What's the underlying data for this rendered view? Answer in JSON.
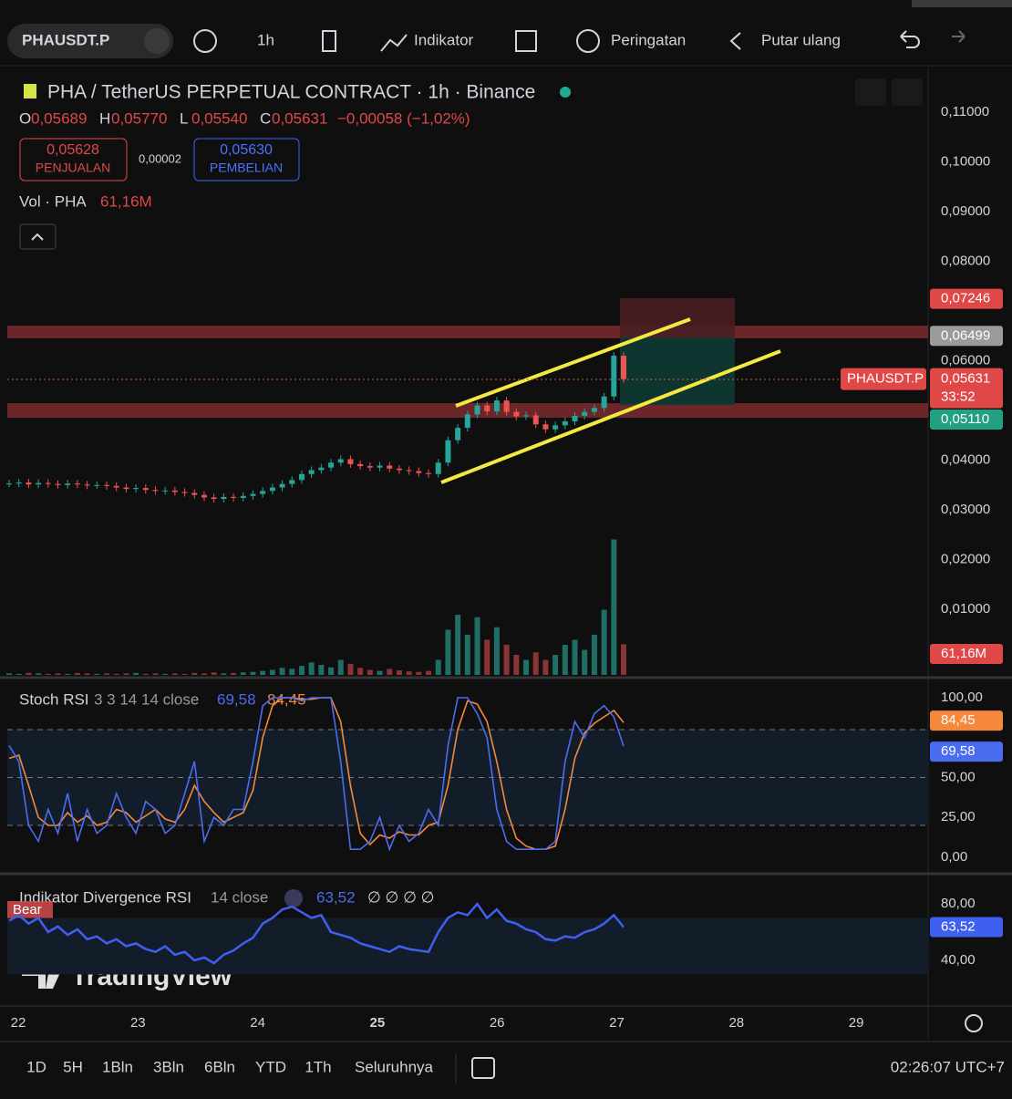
{
  "toolbar": {
    "symbol": "PHAUSDT.P",
    "interval": "1h",
    "indicators": "Indikator",
    "alerts": "Peringatan",
    "replay": "Putar ulang"
  },
  "legend": {
    "title": "PHA / TetherUS PERPETUAL CONTRACT · 1h · Binance",
    "ohlc": [
      [
        "O",
        "0,05689"
      ],
      [
        "H",
        "0,05770"
      ],
      [
        "L",
        "0,05540"
      ],
      [
        "C",
        "0,05631"
      ]
    ],
    "change": "−0,00058 (−1,02%)",
    "sell": {
      "price": "0,05628",
      "label": "PENJUALAN"
    },
    "spread": "0,00002",
    "buy": {
      "price": "0,05630",
      "label": "PEMBELIAN"
    },
    "volume": {
      "name": "Vol · PHA",
      "value": "61,16M"
    }
  },
  "chart": {
    "type": "candlestick",
    "closes": [
      0.0353,
      0.0355,
      0.0351,
      0.0354,
      0.0352,
      0.035,
      0.0353,
      0.0351,
      0.0349,
      0.035,
      0.0348,
      0.0345,
      0.0342,
      0.0344,
      0.034,
      0.0338,
      0.0339,
      0.0336,
      0.0334,
      0.033,
      0.0325,
      0.0322,
      0.0326,
      0.0324,
      0.0328,
      0.0332,
      0.0338,
      0.0345,
      0.0352,
      0.036,
      0.0372,
      0.038,
      0.0385,
      0.0395,
      0.0402,
      0.0392,
      0.0388,
      0.0385,
      0.0389,
      0.0383,
      0.038,
      0.0378,
      0.0374,
      0.0372,
      0.0395,
      0.044,
      0.0465,
      0.0492,
      0.051,
      0.0498,
      0.052,
      0.0497,
      0.0488,
      0.049,
      0.0472,
      0.0462,
      0.047,
      0.0478,
      0.0489,
      0.0497,
      0.0505,
      0.0528,
      0.061,
      0.05631
    ],
    "ylim": [
      -0.0032,
      0.1188
    ],
    "yticks": [
      {
        "value": 0.11,
        "label": "0,11000"
      },
      {
        "value": 0.1,
        "label": "0,10000"
      },
      {
        "value": 0.09,
        "label": "0,09000"
      },
      {
        "value": 0.08,
        "label": "0,08000"
      },
      {
        "value": 0.06,
        "label": "0,06000"
      },
      {
        "value": 0.04,
        "label": "0,04000"
      },
      {
        "value": 0.03,
        "label": "0,03000"
      },
      {
        "value": 0.02,
        "label": "0,02000"
      },
      {
        "value": 0.01,
        "label": "0,01000"
      }
    ],
    "price_labels": [
      {
        "value": 0.07246,
        "label": "0,07246",
        "color": "#e04848"
      },
      {
        "value": 0.06499,
        "label": "0,06499",
        "color": "#9a9a9a"
      },
      {
        "value": 0.0511,
        "label": "0,05110",
        "color": "#22a083"
      }
    ],
    "last_price": {
      "value": 0.05631,
      "label": "0,05631",
      "countdown": "33:52",
      "symbol": "PHAUSDT.P"
    },
    "volume": {
      "values": [
        3,
        2,
        4,
        3,
        2,
        3,
        2,
        4,
        3,
        2,
        3,
        2,
        3,
        4,
        2,
        3,
        2,
        3,
        2,
        4,
        3,
        5,
        3,
        4,
        5,
        6,
        8,
        10,
        14,
        12,
        18,
        25,
        20,
        15,
        30,
        22,
        14,
        10,
        8,
        12,
        9,
        7,
        6,
        8,
        30,
        90,
        120,
        80,
        115,
        70,
        95,
        60,
        40,
        30,
        45,
        30,
        40,
        60,
        70,
        50,
        80,
        130,
        270,
        61.16
      ],
      "ylim": [
        0,
        300
      ],
      "value_label": "61,16M"
    },
    "days": [
      "22",
      "23",
      "24",
      "25",
      "26",
      "27",
      "28",
      "29"
    ]
  },
  "stoch": {
    "name": "Stoch RSI",
    "params": "3 3 14 14 close",
    "ylim": [
      -8.6,
      111.4
    ],
    "levels": [
      80,
      50,
      20
    ],
    "yticks": [
      {
        "value": 100,
        "label": "100,00"
      },
      {
        "value": 50,
        "label": "50,00"
      },
      {
        "value": 25,
        "label": "25,00"
      },
      {
        "value": 0,
        "label": "0,00"
      }
    ],
    "series": [
      {
        "name": "K",
        "color": "#4a6cf0",
        "values": [
          70,
          60,
          20,
          10,
          30,
          15,
          40,
          10,
          30,
          15,
          20,
          40,
          25,
          15,
          35,
          30,
          15,
          20,
          40,
          60,
          10,
          25,
          20,
          30,
          30,
          60,
          95,
          100,
          100,
          100,
          98,
          100,
          100,
          100,
          60,
          5,
          5,
          10,
          25,
          5,
          20,
          10,
          15,
          30,
          20,
          70,
          100,
          100,
          90,
          75,
          30,
          10,
          5,
          5,
          5,
          5,
          10,
          60,
          85,
          75,
          90,
          95,
          88,
          69.58
        ],
        "value_label": "69,58"
      },
      {
        "name": "D",
        "color": "#f5883a",
        "values": [
          62,
          64,
          45,
          25,
          20,
          20,
          28,
          22,
          26,
          20,
          22,
          30,
          28,
          22,
          26,
          30,
          24,
          22,
          30,
          45,
          35,
          28,
          22,
          25,
          28,
          42,
          75,
          95,
          100,
          100,
          99,
          99,
          100,
          100,
          85,
          45,
          15,
          8,
          14,
          12,
          16,
          14,
          14,
          20,
          22,
          45,
          80,
          98,
          96,
          85,
          60,
          30,
          12,
          7,
          5,
          5,
          7,
          30,
          62,
          78,
          84,
          88,
          92,
          84.45
        ],
        "value_label": "84,45"
      }
    ]
  },
  "rsi": {
    "name": "Indikator Divergence RSI",
    "params": "14 close",
    "flags": "∅ ∅ ∅ ∅",
    "tag": "Bear",
    "color": "#3f5ff0",
    "ylim": [
      9.7,
      100
    ],
    "yticks": [
      {
        "value": 80,
        "label": "80,00"
      },
      {
        "value": 40,
        "label": "40,00"
      }
    ],
    "values": [
      68,
      72,
      66,
      70,
      60,
      64,
      58,
      62,
      55,
      57,
      52,
      55,
      50,
      52,
      48,
      46,
      50,
      44,
      46,
      40,
      42,
      38,
      44,
      47,
      52,
      56,
      66,
      70,
      76,
      78,
      74,
      70,
      72,
      60,
      58,
      56,
      52,
      50,
      48,
      46,
      50,
      48,
      47,
      46,
      60,
      70,
      74,
      72,
      80,
      70,
      76,
      68,
      66,
      62,
      60,
      55,
      54,
      57,
      56,
      60,
      62,
      66,
      72,
      63.52
    ],
    "value_label": "63,52"
  },
  "watermark": "TradingView",
  "bottom": {
    "ranges": [
      "1D",
      "5H",
      "1Bln",
      "3Bln",
      "6Bln",
      "YTD",
      "1Th",
      "Seluruhnya"
    ],
    "clock": "02:26:07 UTC+7"
  }
}
